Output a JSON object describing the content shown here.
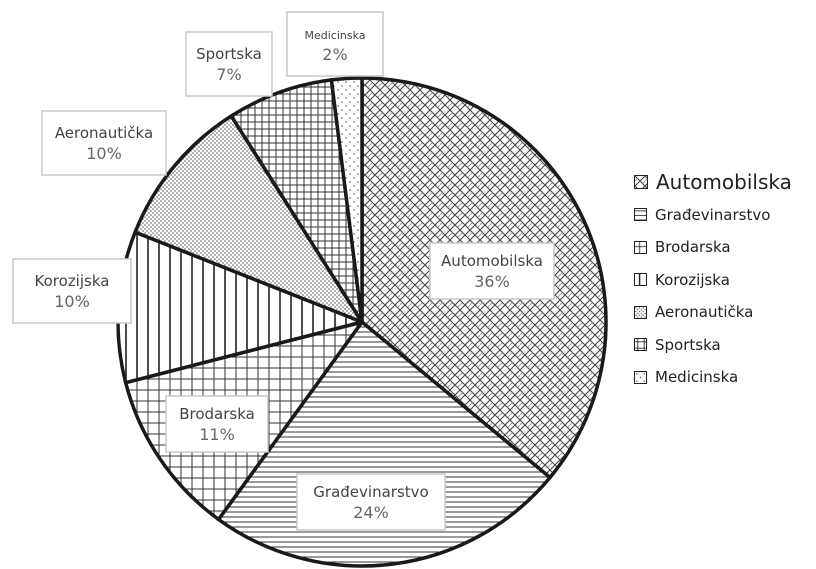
{
  "chart_data": {
    "type": "pie",
    "title": "",
    "slices": [
      {
        "name": "Automobilska",
        "value": 36,
        "label": "36%",
        "pattern": "weave"
      },
      {
        "name": "Građevinarstvo",
        "value": 24,
        "label": "24%",
        "pattern": "hlines"
      },
      {
        "name": "Brodarska",
        "value": 11,
        "label": "11%",
        "pattern": "grid"
      },
      {
        "name": "Korozijska",
        "value": 10,
        "label": "10%",
        "pattern": "vlines"
      },
      {
        "name": "Aeronautička",
        "value": 10,
        "label": "10%",
        "pattern": "dense-dots"
      },
      {
        "name": "Sportska",
        "value": 7,
        "label": "7%",
        "pattern": "fine-grid"
      },
      {
        "name": "Medicinska",
        "value": 2,
        "label": "2%",
        "pattern": "sparse-dots"
      }
    ],
    "start_angle": "12 o'clock",
    "direction": "clockwise",
    "legend": {
      "placement": "right",
      "items": [
        "Automobilska",
        "Građevinarstvo",
        "Brodarska",
        "Korozijska",
        "Aeronautička",
        "Sportska",
        "Medicinska"
      ]
    },
    "colors": {
      "edge": "#1a1a1a",
      "label_text": "#666666",
      "label_border": "#c8c8c8"
    }
  }
}
